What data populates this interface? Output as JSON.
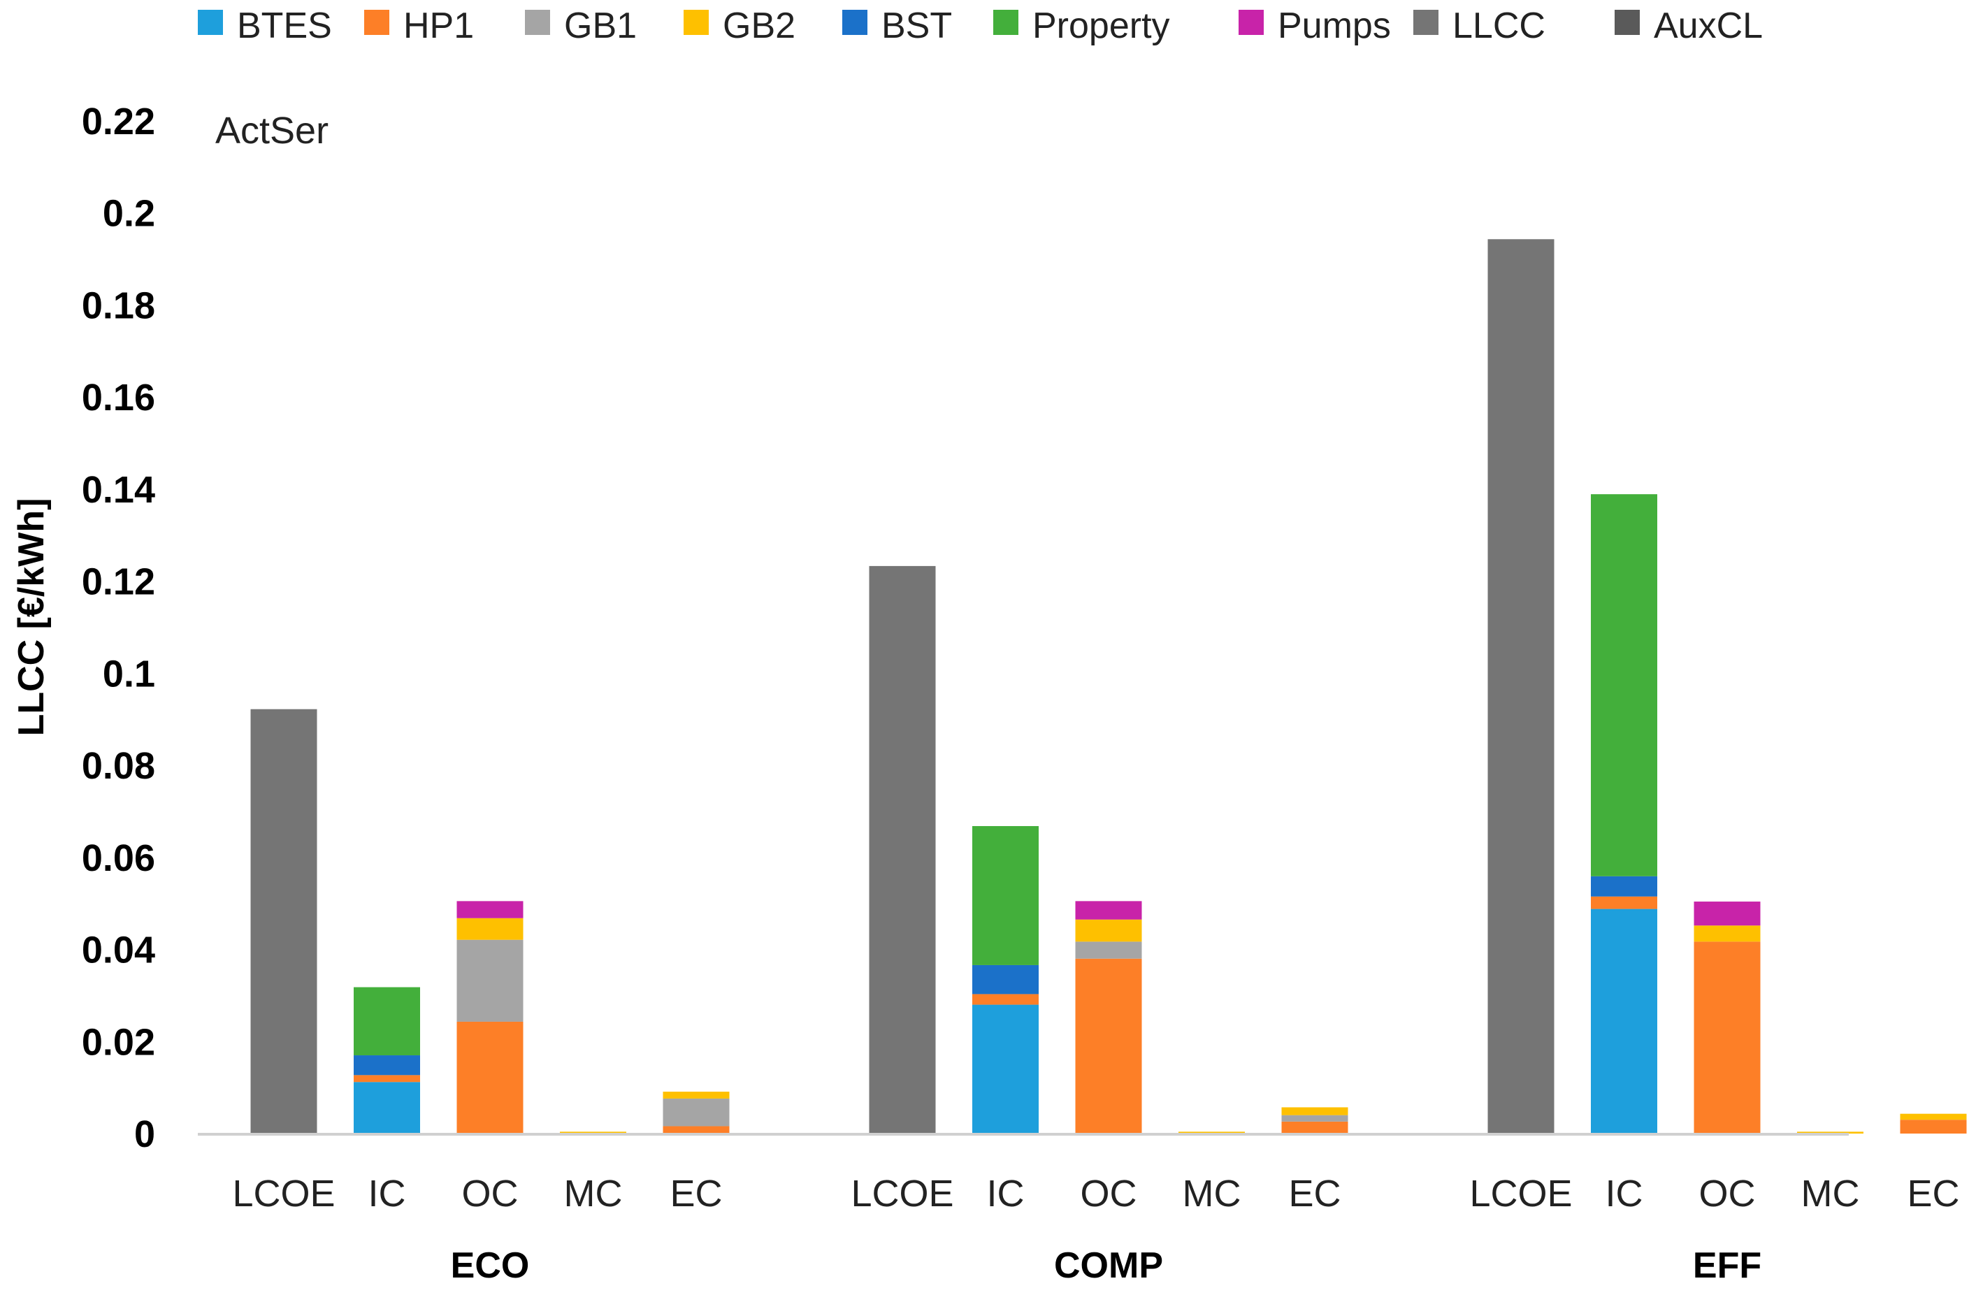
{
  "chart_data": {
    "type": "bar",
    "stacked": true,
    "title": "",
    "annotation": "ActSer",
    "ylabel": "LLCC [€/kWh]",
    "xlabel": "",
    "ylim": [
      0,
      0.22
    ],
    "yticks": [
      0,
      0.02,
      0.04,
      0.06,
      0.08,
      0.1,
      0.12,
      0.14,
      0.16,
      0.18,
      0.2,
      0.22
    ],
    "ytick_labels": [
      "0",
      "0.02",
      "0.04",
      "0.06",
      "0.08",
      "0.1",
      "0.12",
      "0.14",
      "0.16",
      "0.18",
      "0.2",
      "0.22"
    ],
    "grid": false,
    "legend_position": "top",
    "series": [
      {
        "name": "BTES",
        "color": "#1e9fdc"
      },
      {
        "name": "HP1",
        "color": "#fd7f27"
      },
      {
        "name": "GB1",
        "color": "#a5a5a5"
      },
      {
        "name": "GB2",
        "color": "#fec000"
      },
      {
        "name": "BST",
        "color": "#1b71c9"
      },
      {
        "name": "Property",
        "color": "#43af3b"
      },
      {
        "name": "Pumps",
        "color": "#c823a9"
      },
      {
        "name": "LLCC",
        "color": "#757575"
      },
      {
        "name": "AuxCL",
        "color": "#5a5a5a"
      }
    ],
    "groups": [
      {
        "name": "ECO",
        "bars": [
          {
            "category": "LCOE",
            "segments": {
              "LLCC": 0.0922
            }
          },
          {
            "category": "IC",
            "segments": {
              "BTES": 0.0112,
              "HP1": 0.0015,
              "BST": 0.0043,
              "Property": 0.0148
            }
          },
          {
            "category": "OC",
            "segments": {
              "HP1": 0.0243,
              "GB1": 0.0178,
              "GB2": 0.0047,
              "Pumps": 0.0037
            }
          },
          {
            "category": "MC",
            "segments": {
              "GB2": 0.0004
            }
          },
          {
            "category": "EC",
            "segments": {
              "HP1": 0.0016,
              "GB1": 0.006,
              "GB2": 0.0015
            }
          }
        ]
      },
      {
        "name": "COMP",
        "bars": [
          {
            "category": "LCOE",
            "segments": {
              "LLCC": 0.1233
            }
          },
          {
            "category": "IC",
            "segments": {
              "BTES": 0.028,
              "HP1": 0.0023,
              "BST": 0.0063,
              "Property": 0.0302
            }
          },
          {
            "category": "OC",
            "segments": {
              "HP1": 0.038,
              "GB1": 0.0037,
              "GB2": 0.0048,
              "Pumps": 0.004
            }
          },
          {
            "category": "MC",
            "segments": {
              "GB2": 0.0004
            }
          },
          {
            "category": "EC",
            "segments": {
              "HP1": 0.0026,
              "GB1": 0.0014,
              "GB2": 0.0017
            }
          }
        ]
      },
      {
        "name": "EFF",
        "bars": [
          {
            "category": "LCOE",
            "segments": {
              "LLCC": 0.1943
            }
          },
          {
            "category": "IC",
            "segments": {
              "BTES": 0.0488,
              "HP1": 0.0027,
              "BST": 0.0044,
              "Property": 0.083
            }
          },
          {
            "category": "OC",
            "segments": {
              "HP1": 0.0417,
              "GB2": 0.0035,
              "Pumps": 0.0052
            }
          },
          {
            "category": "MC",
            "segments": {
              "GB2": 0.0004
            }
          },
          {
            "category": "EC",
            "segments": {
              "HP1": 0.003,
              "GB2": 0.0013
            }
          }
        ]
      }
    ]
  }
}
